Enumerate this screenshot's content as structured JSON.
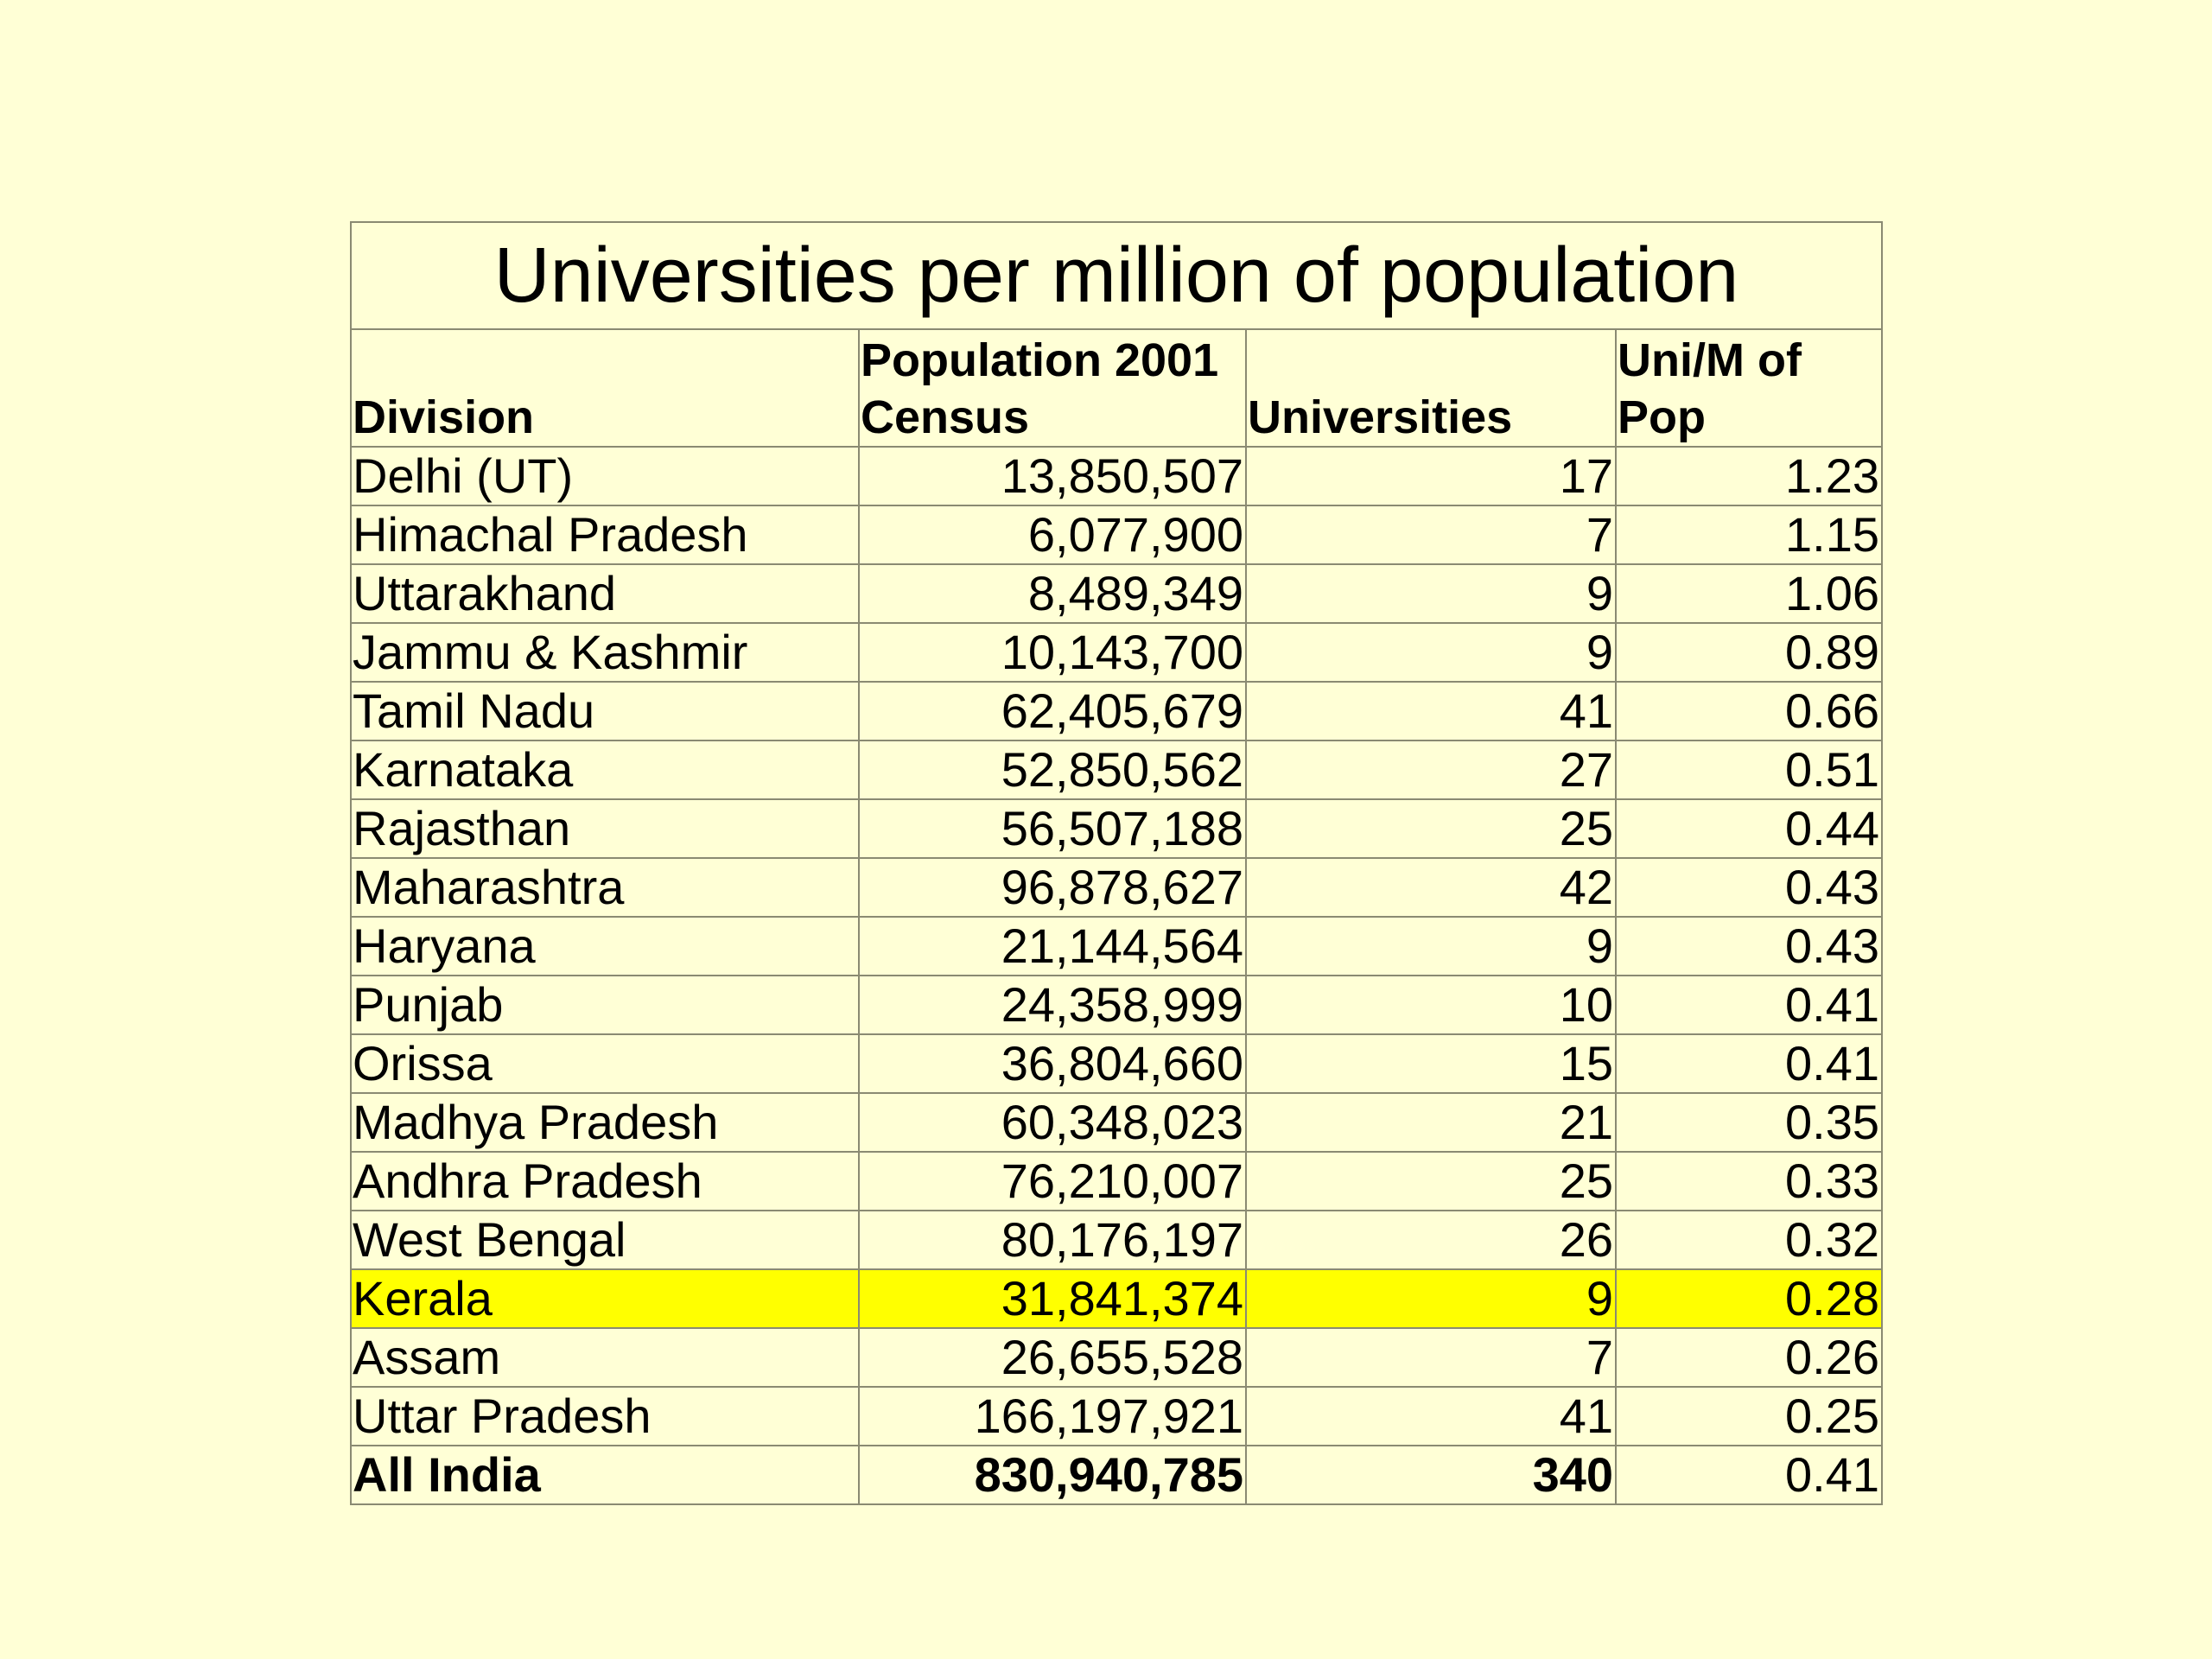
{
  "table": {
    "title": "Universities per million of population",
    "headers": {
      "division": "Division",
      "population": "Population 2001 Census",
      "universities": "Universities",
      "ratio": "Uni/M of Pop"
    },
    "highlight_color": "#ffff00",
    "background_color": "#ffffd6",
    "rows": [
      {
        "division": "Delhi (UT)",
        "population": "13,850,507",
        "universities": "17",
        "ratio": "1.23"
      },
      {
        "division": "Himachal Pradesh",
        "population": "6,077,900",
        "universities": "7",
        "ratio": "1.15"
      },
      {
        "division": "Uttarakhand",
        "population": "8,489,349",
        "universities": "9",
        "ratio": "1.06"
      },
      {
        "division": "Jammu & Kashmir",
        "population": "10,143,700",
        "universities": "9",
        "ratio": "0.89"
      },
      {
        "division": "Tamil Nadu",
        "population": "62,405,679",
        "universities": "41",
        "ratio": "0.66"
      },
      {
        "division": "Karnataka",
        "population": "52,850,562",
        "universities": "27",
        "ratio": "0.51"
      },
      {
        "division": "Rajasthan",
        "population": "56,507,188",
        "universities": "25",
        "ratio": "0.44"
      },
      {
        "division": "Maharashtra",
        "population": "96,878,627",
        "universities": "42",
        "ratio": "0.43"
      },
      {
        "division": "Haryana",
        "population": "21,144,564",
        "universities": "9",
        "ratio": "0.43"
      },
      {
        "division": "Punjab",
        "population": "24,358,999",
        "universities": "10",
        "ratio": "0.41"
      },
      {
        "division": "Orissa",
        "population": "36,804,660",
        "universities": "15",
        "ratio": "0.41"
      },
      {
        "division": "Madhya Pradesh",
        "population": "60,348,023",
        "universities": "21",
        "ratio": "0.35"
      },
      {
        "division": "Andhra Pradesh",
        "population": "76,210,007",
        "universities": "25",
        "ratio": "0.33"
      },
      {
        "division": "West Bengal",
        "population": "80,176,197",
        "universities": "26",
        "ratio": "0.32"
      },
      {
        "division": "Kerala",
        "population": "31,841,374",
        "universities": "9",
        "ratio": "0.28",
        "highlighted": true
      },
      {
        "division": "Assam",
        "population": "26,655,528",
        "universities": "7",
        "ratio": "0.26"
      },
      {
        "division": "Uttar Pradesh",
        "population": "166,197,921",
        "universities": "41",
        "ratio": "0.25"
      }
    ],
    "total": {
      "division": "All India",
      "population": "830,940,785",
      "universities": "340",
      "ratio": "0.41"
    }
  }
}
